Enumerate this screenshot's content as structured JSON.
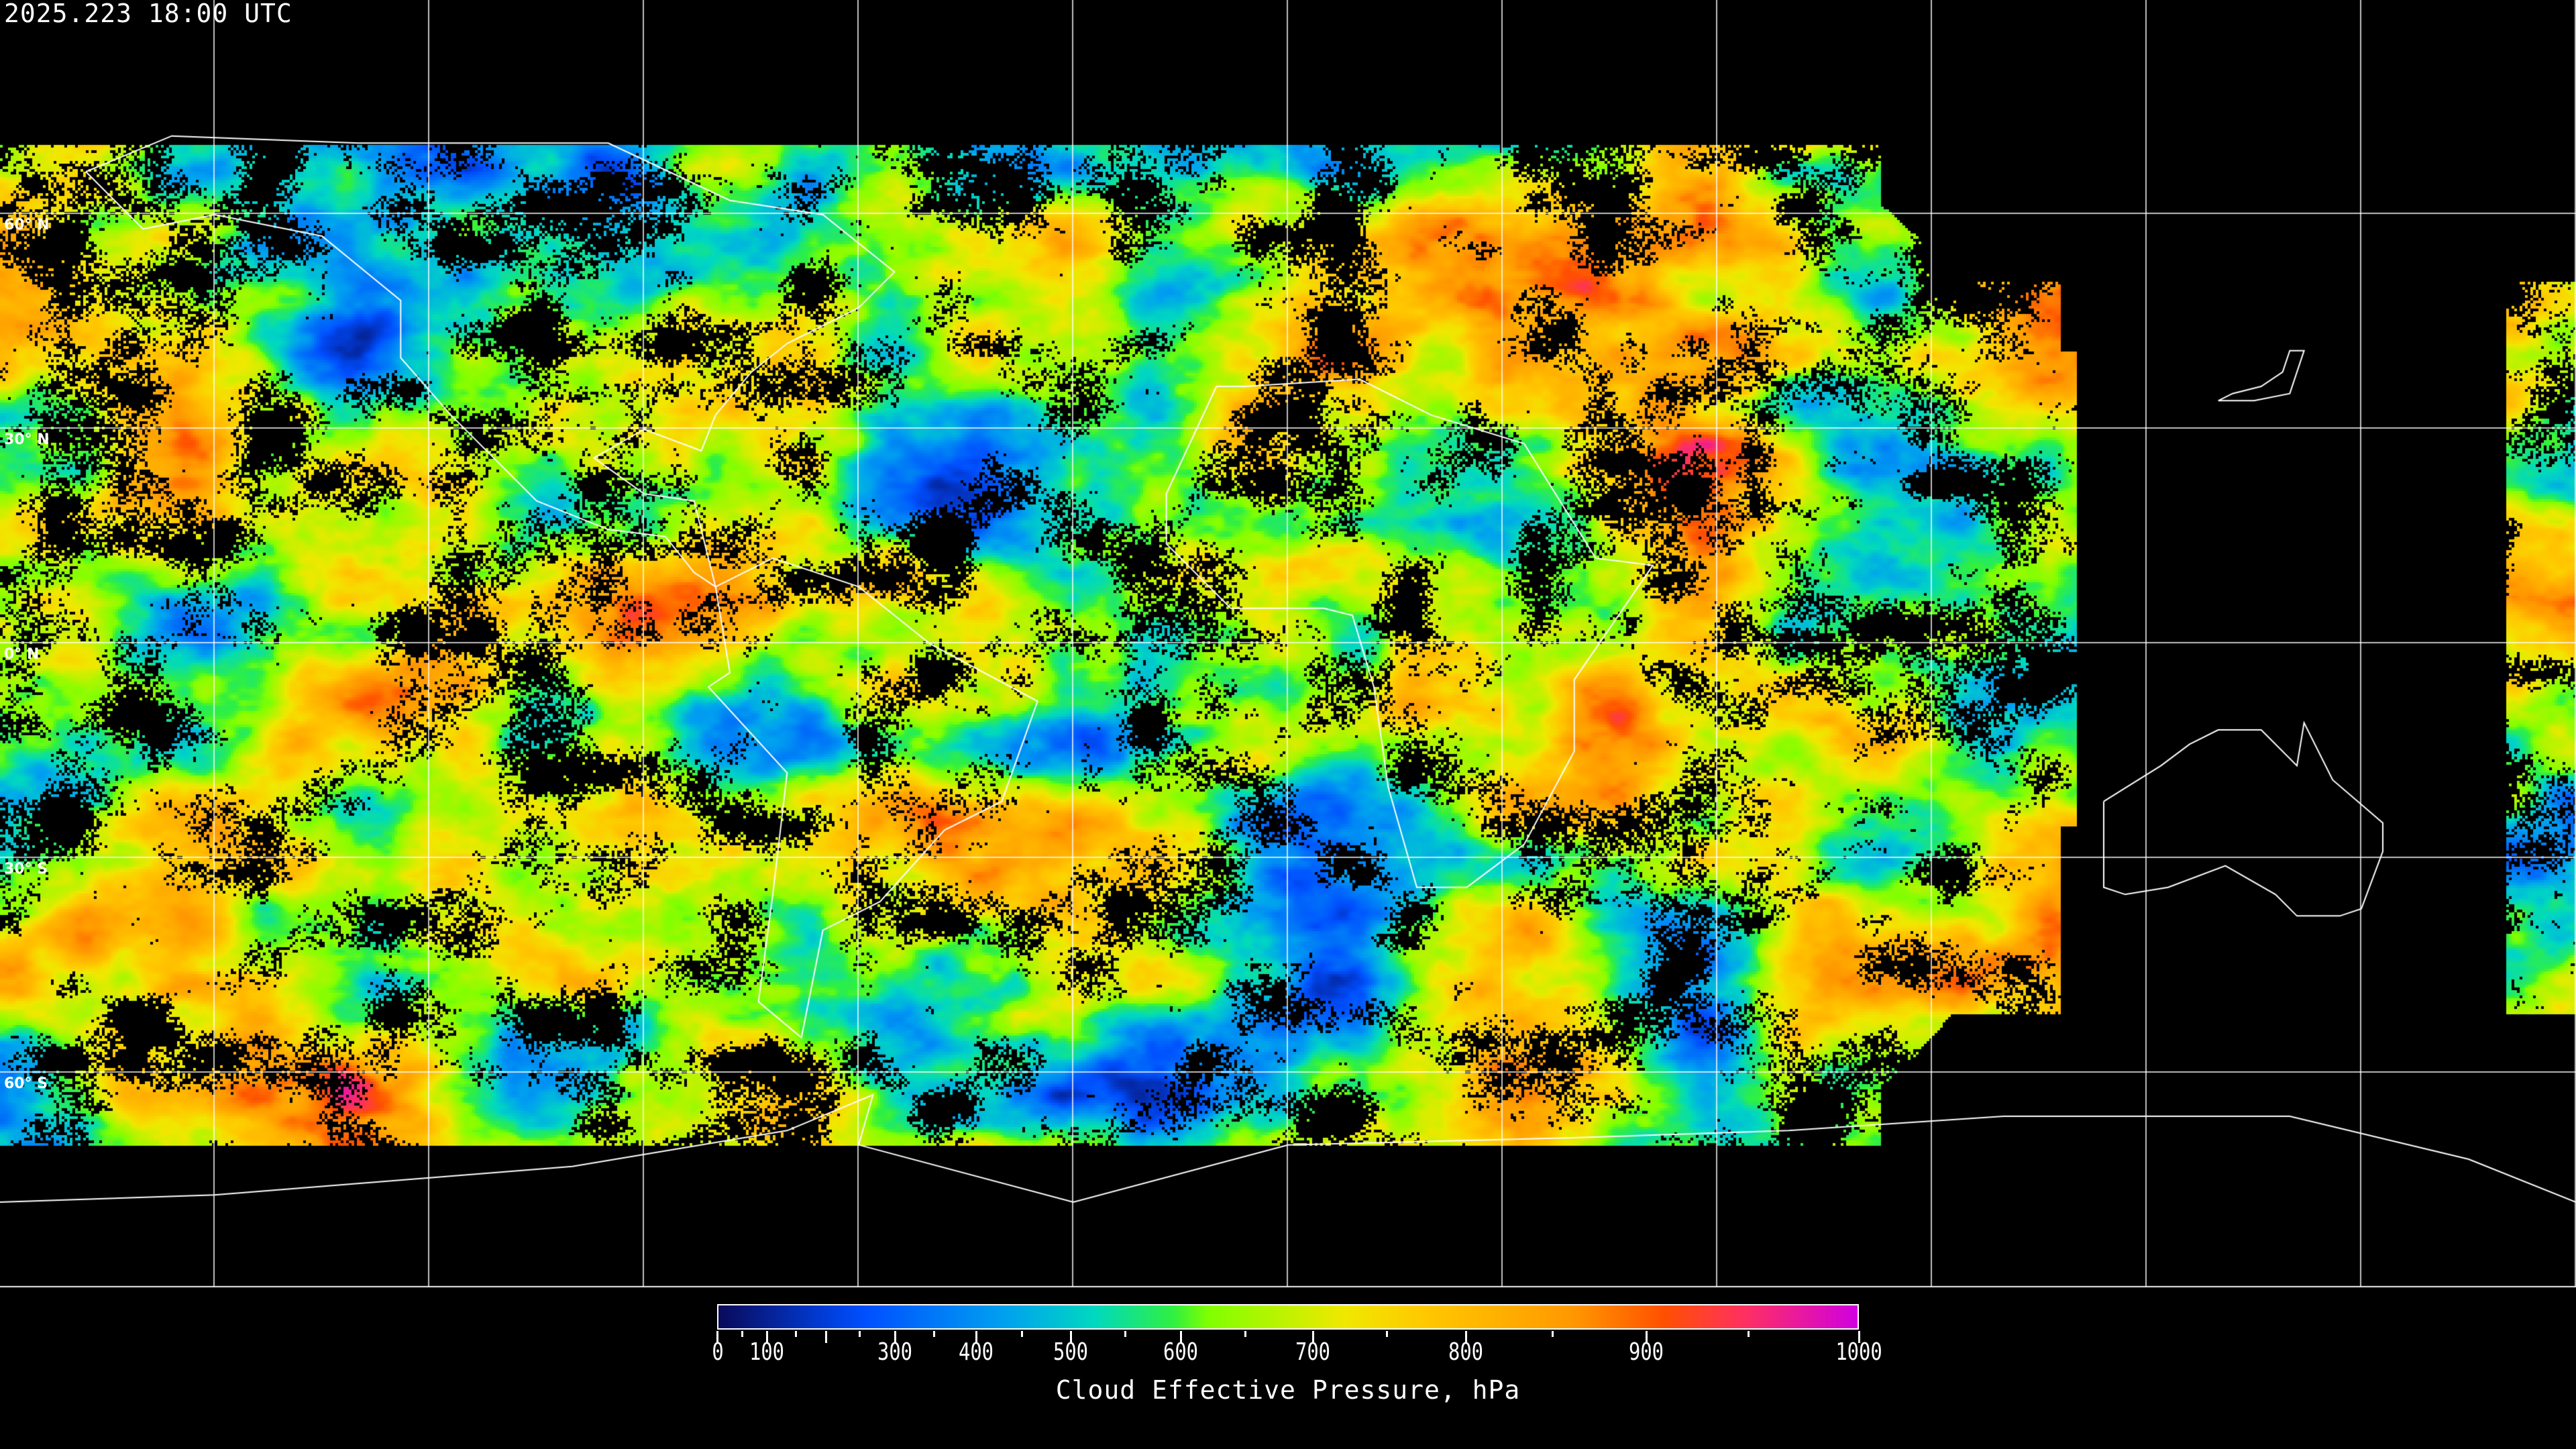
{
  "header": {
    "timestamp": "2025.223 18:00 UTC"
  },
  "map": {
    "projection": "equirectangular",
    "background_color": "#000000",
    "coastline_color": "#ffffff",
    "grid_color": "#ffffff",
    "lat_labels": [
      "60° N",
      "30° N",
      "0° N",
      "30° S",
      "60° S"
    ],
    "no_data_color": "#000000"
  },
  "colorbar": {
    "label": "Cloud Effective Pressure, hPa",
    "min": 0,
    "max": 1000,
    "tick_labels": [
      "0",
      "100",
      "300",
      "400",
      "500",
      "600",
      "700",
      "800",
      "900",
      "1000"
    ],
    "colors": [
      "#0a0a5a",
      "#0040e0",
      "#0050ff",
      "#00a0f0",
      "#00d8c0",
      "#30f040",
      "#80ff00",
      "#f0e800",
      "#ffc800",
      "#ff9800",
      "#ff5000",
      "#ff3060",
      "#d000e0"
    ]
  }
}
